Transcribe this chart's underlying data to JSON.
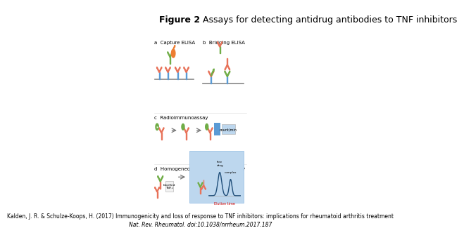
{
  "title_bold": "Figure 2",
  "title_regular": " Assays for detecting antidrug antibodies to TNF inhibitors",
  "title_fontsize": 9,
  "citation_line1": "Kalden, J. R. & Schulze-Koops, H. (2017) Immunogenicity and loss of response to TNF inhibitors: implications for rheumatoid arthritis treatment",
  "citation_line2": "Nat. Rev. Rheumatol. doi:10.1038/nrrheum.2017.187",
  "citation_fontsize": 5.5,
  "bg_color": "#ffffff",
  "salmon": "#E8735A",
  "blue": "#5B9BD5",
  "green": "#70AD47",
  "orange": "#ED7D31",
  "lightblue": "#BDD7EE",
  "darkblue": "#1F4E79",
  "gray_line": "#888888",
  "panel_label_fontsize": 5.0,
  "panel_labels": [
    "a  Capture ELISA",
    "b  Bridging ELISA",
    "c  Radioimmunoassay",
    "d  Homogeneous mobility shift assay"
  ]
}
